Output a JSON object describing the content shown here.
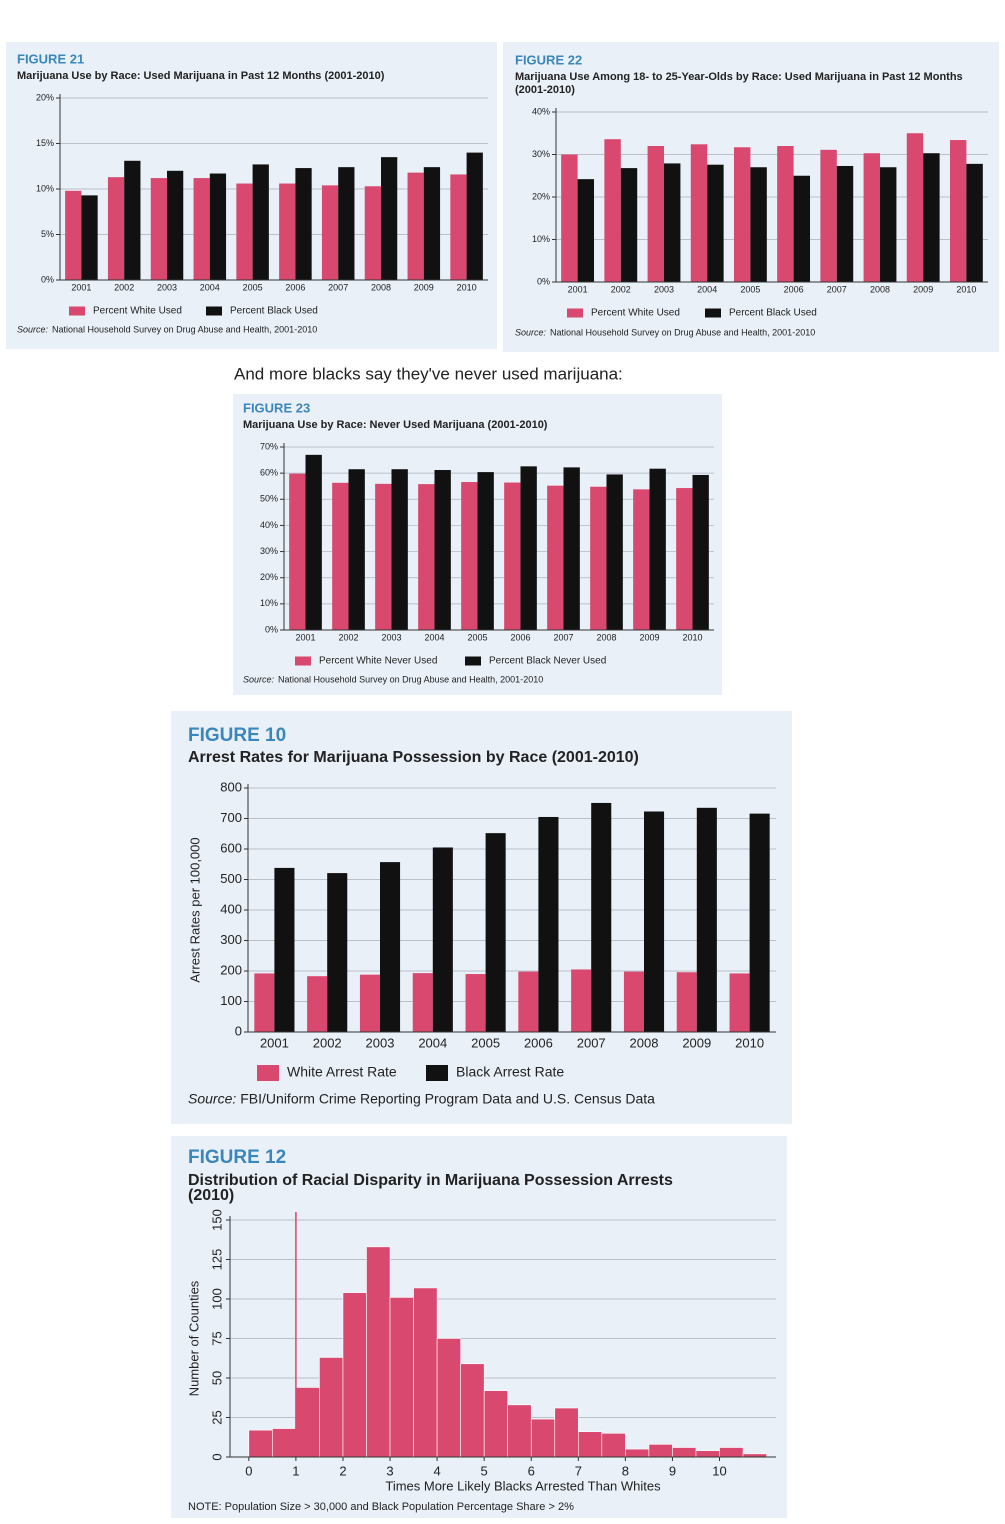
{
  "caption": "And more blacks say they've never used marijuana:",
  "chart_data": [
    {
      "type": "bar",
      "figure_label": "FIGURE 21",
      "title": "Marijuana Use by Race: Used Marijuana in Past 12 Months (2001-2010)",
      "categories": [
        "2001",
        "2002",
        "2003",
        "2004",
        "2005",
        "2006",
        "2007",
        "2008",
        "2009",
        "2010"
      ],
      "series": [
        {
          "name": "Percent White Used",
          "color": "#d9486f",
          "values": [
            9.8,
            11.3,
            11.2,
            11.2,
            10.6,
            10.6,
            10.4,
            10.3,
            11.8,
            11.6
          ]
        },
        {
          "name": "Percent Black Used",
          "color": "#111111",
          "values": [
            9.3,
            13.1,
            12.0,
            11.7,
            12.7,
            12.3,
            12.4,
            13.5,
            12.4,
            14.0
          ]
        }
      ],
      "ylim": [
        0,
        20
      ],
      "yticks": [
        {
          "value": 0,
          "label": "0%"
        },
        {
          "value": 5,
          "label": "5%"
        },
        {
          "value": 10,
          "label": "10%"
        },
        {
          "value": 15,
          "label": "15%"
        },
        {
          "value": 20,
          "label": "20%"
        }
      ],
      "grid": true,
      "source_label": "Source:",
      "source": "National Household Survey on Drug Abuse and Health, 2001-2010"
    },
    {
      "type": "bar",
      "figure_label": "FIGURE 22",
      "title": "Marijuana Use Among 18- to 25-Year-Olds by Race: Used Marijuana in Past 12 Months (2001-2010)",
      "categories": [
        "2001",
        "2002",
        "2003",
        "2004",
        "2005",
        "2006",
        "2007",
        "2008",
        "2009",
        "2010"
      ],
      "series": [
        {
          "name": "Percent White Used",
          "color": "#d9486f",
          "values": [
            30.0,
            33.6,
            32.0,
            32.4,
            31.7,
            32.0,
            31.1,
            30.3,
            35.0,
            33.4
          ]
        },
        {
          "name": "Percent Black Used",
          "color": "#111111",
          "values": [
            24.2,
            26.8,
            27.9,
            27.6,
            27.0,
            25.0,
            27.3,
            27.0,
            30.3,
            27.8
          ]
        }
      ],
      "ylim": [
        0,
        40
      ],
      "yticks": [
        {
          "value": 0,
          "label": "0%"
        },
        {
          "value": 10,
          "label": "10%"
        },
        {
          "value": 20,
          "label": "20%"
        },
        {
          "value": 30,
          "label": "30%"
        },
        {
          "value": 40,
          "label": "40%"
        }
      ],
      "grid": true,
      "source_label": "Source:",
      "source": "National Household Survey on Drug Abuse and Health, 2001-2010"
    },
    {
      "type": "bar",
      "figure_label": "FIGURE 23",
      "title": "Marijuana Use by Race: Never Used Marijuana (2001-2010)",
      "categories": [
        "2001",
        "2002",
        "2003",
        "2004",
        "2005",
        "2006",
        "2007",
        "2008",
        "2009",
        "2010"
      ],
      "series": [
        {
          "name": "Percent White Never Used",
          "color": "#d9486f",
          "values": [
            59.8,
            56.3,
            55.9,
            55.8,
            56.6,
            56.4,
            55.2,
            54.8,
            53.8,
            54.3
          ]
        },
        {
          "name": "Percent Black Never Used",
          "color": "#111111",
          "values": [
            67.0,
            61.5,
            61.5,
            61.2,
            60.4,
            62.6,
            62.2,
            59.5,
            61.7,
            59.3
          ]
        }
      ],
      "ylim": [
        0,
        70
      ],
      "yticks": [
        {
          "value": 0,
          "label": "0%"
        },
        {
          "value": 10,
          "label": "10%"
        },
        {
          "value": 20,
          "label": "20%"
        },
        {
          "value": 30,
          "label": "30%"
        },
        {
          "value": 40,
          "label": "40%"
        },
        {
          "value": 50,
          "label": "50%"
        },
        {
          "value": 60,
          "label": "60%"
        },
        {
          "value": 70,
          "label": "70%"
        }
      ],
      "grid": true,
      "source_label": "Source:",
      "source": "National Household Survey on Drug Abuse and Health, 2001-2010"
    },
    {
      "type": "bar",
      "figure_label": "FIGURE 10",
      "title": "Arrest Rates for Marijuana Possession by Race (2001-2010)",
      "y_label": "Arrest Rates per 100,000",
      "categories": [
        "2001",
        "2002",
        "2003",
        "2004",
        "2005",
        "2006",
        "2007",
        "2008",
        "2009",
        "2010"
      ],
      "series": [
        {
          "name": "White Arrest Rate",
          "color": "#d9486f",
          "values": [
            192,
            183,
            188,
            193,
            190,
            198,
            205,
            198,
            196,
            192
          ]
        },
        {
          "name": "Black Arrest Rate",
          "color": "#111111",
          "values": [
            538,
            521,
            557,
            605,
            652,
            705,
            751,
            723,
            735,
            716
          ]
        }
      ],
      "ylim": [
        0,
        800
      ],
      "yticks": [
        0,
        100,
        200,
        300,
        400,
        500,
        600,
        700,
        800
      ],
      "grid": true,
      "source_label": "Source:",
      "source": "FBI/Uniform Crime Reporting Program Data and U.S. Census Data"
    },
    {
      "type": "histogram",
      "figure_label": "FIGURE 12",
      "title": "Distribution of Racial Disparity in Marijuana Possession Arrests (2010)",
      "x_label": "Times More Likely Blacks Arrested Than Whites",
      "y_label": "Number of Counties",
      "bins": [
        0,
        0.5,
        1,
        1.5,
        2,
        2.5,
        3,
        3.5,
        4,
        4.5,
        5,
        5.5,
        6,
        6.5,
        7,
        7.5,
        8,
        8.5,
        9,
        9.5,
        10,
        10.5,
        11
      ],
      "values": [
        17,
        18,
        44,
        63,
        104,
        133,
        101,
        107,
        75,
        59,
        42,
        33,
        24,
        31,
        16,
        15,
        5,
        8,
        6,
        4,
        6,
        2
      ],
      "color": "#d9486f",
      "vline": 1,
      "xlim": [
        -0.4,
        11.2
      ],
      "xticks": [
        0,
        1,
        2,
        3,
        4,
        5,
        6,
        7,
        8,
        9,
        10
      ],
      "ylim": [
        0,
        150
      ],
      "yticks": [
        0,
        25,
        50,
        75,
        100,
        125,
        150
      ],
      "grid": true,
      "note": "NOTE: Population Size > 30,000 and Black Population Percentage Share > 2%"
    }
  ]
}
